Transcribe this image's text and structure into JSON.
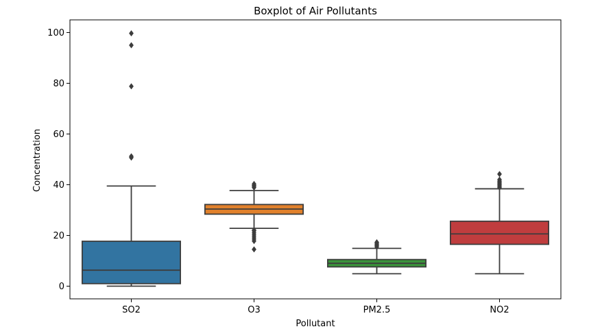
{
  "chart_data": {
    "type": "boxplot",
    "title": "Boxplot of Air Pollutants",
    "xlabel": "Pollutant",
    "ylabel": "Concentration",
    "ylim": [
      -5,
      105
    ],
    "yticks": [
      0,
      20,
      40,
      60,
      80,
      100
    ],
    "grid": false,
    "categories": [
      {
        "name": "SO2",
        "color": "#3274a1",
        "whisker_low": 0,
        "q1": 1,
        "median": 6.3,
        "q3": 17.7,
        "whisker_high": 39.5,
        "outliers": [
          50.7,
          51.2,
          78.8,
          95.0,
          99.7
        ]
      },
      {
        "name": "O3",
        "color": "#e1812c",
        "whisker_low": 22.8,
        "q1": 28.4,
        "median": 30.4,
        "q3": 32.2,
        "whisker_high": 37.7,
        "outliers": [
          14.5,
          17.8,
          18.6,
          19.4,
          20.2,
          21.0,
          21.8,
          22.1,
          38.9,
          39.4,
          39.8,
          40.3
        ]
      },
      {
        "name": "PM2.5",
        "color": "#3a923a",
        "whisker_low": 4.9,
        "q1": 7.6,
        "median": 9.0,
        "q3": 10.5,
        "whisker_high": 14.9,
        "outliers": [
          15.5,
          16.0,
          16.4,
          16.9,
          17.3
        ]
      },
      {
        "name": "NO2",
        "color": "#c03d3e",
        "whisker_low": 4.9,
        "q1": 16.5,
        "median": 20.6,
        "q3": 25.6,
        "whisker_high": 38.4,
        "outliers": [
          38.9,
          39.4,
          39.9,
          40.4,
          40.9,
          41.4,
          42.0,
          44.2
        ]
      }
    ]
  }
}
